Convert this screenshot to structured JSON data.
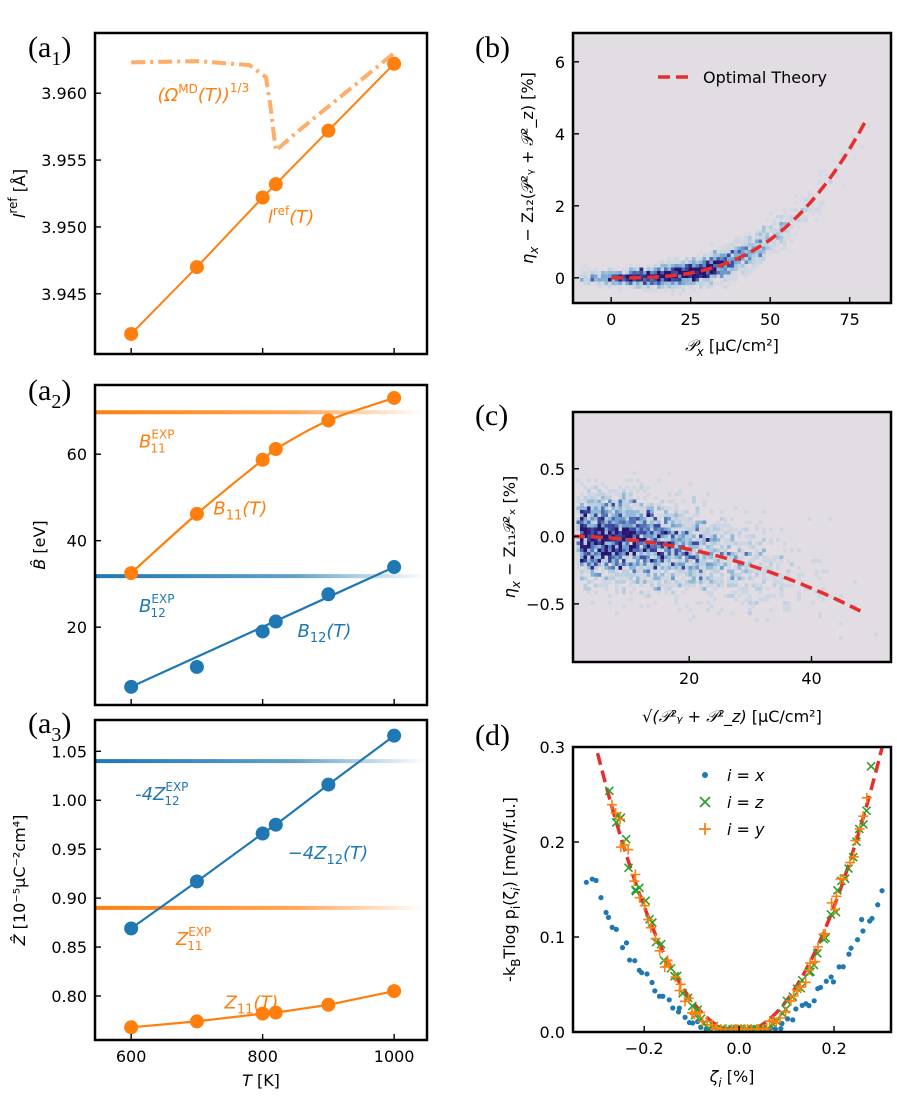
{
  "figure": {
    "colors": {
      "orange": "#ff7f0e",
      "blue": "#1f77b4",
      "red": "#e62e2e",
      "green": "#2ca02c",
      "panel_bg": "#e2dce3"
    },
    "panels": {
      "a1": {
        "tag": "(a",
        "tag_sub": "1",
        "tag_close": ")"
      },
      "a2": {
        "tag": "(a",
        "tag_sub": "2",
        "tag_close": ")"
      },
      "a3": {
        "tag": "(a",
        "tag_sub": "3",
        "tag_close": ")"
      },
      "b": {
        "tag": "(b)"
      },
      "c": {
        "tag": "(c)"
      },
      "d": {
        "tag": "(d)"
      }
    }
  },
  "chart_data": [
    {
      "id": "a1",
      "type": "line",
      "xlim": [
        545,
        1050
      ],
      "ylim": [
        3.9405,
        3.9645
      ],
      "xticks": [
        600,
        800,
        1000
      ],
      "xticklabels": [
        "",
        "",
        ""
      ],
      "yticks": [
        3.945,
        3.95,
        3.955,
        3.96
      ],
      "yticklabels": [
        "3.945",
        "3.950",
        "3.955",
        "3.960"
      ],
      "ylabel": "l",
      "ylabel_sup": "ref",
      "ylabel_unit": " [Å]",
      "series": [
        {
          "name": "lref",
          "color": "#ff7f0e",
          "style": "solid-markers",
          "x": [
            600,
            700,
            800,
            820,
            900,
            1000
          ],
          "y": [
            3.942,
            3.947,
            3.9522,
            3.9532,
            3.9572,
            3.9622
          ]
        },
        {
          "name": "omega_md",
          "color": "#ff7f0e",
          "style": "dashdot",
          "x": [
            600,
            700,
            780,
            805,
            812,
            820,
            850,
            900,
            1000
          ],
          "y": [
            3.9623,
            3.9624,
            3.9621,
            3.9612,
            3.959,
            3.9557,
            3.957,
            3.959,
            3.963
          ]
        }
      ],
      "annotations": [
        {
          "text": "(Ω",
          "sup": "MD",
          "after": "(T))",
          "sup2": "1/3",
          "x": 640,
          "y": 3.9594
        },
        {
          "text": "l",
          "sup": "ref",
          "after": "(T)",
          "x": 808,
          "y": 3.9503
        }
      ]
    },
    {
      "id": "a2",
      "type": "line",
      "xlim": [
        545,
        1050
      ],
      "ylim": [
        2,
        76
      ],
      "xticks": [
        600,
        800,
        1000
      ],
      "xticklabels": [
        "",
        "",
        ""
      ],
      "yticks": [
        20,
        40,
        60
      ],
      "yticklabels": [
        "20",
        "40",
        "60"
      ],
      "ylabel": "B̂",
      "ylabel_unit": " [eV]",
      "series": [
        {
          "name": "B11",
          "color": "#ff7f0e",
          "style": "smooth-markers",
          "x": [
            600,
            700,
            800,
            820,
            900,
            1000
          ],
          "y": [
            32.5,
            46.2,
            58.7,
            61.2,
            67.8,
            73
          ]
        },
        {
          "name": "B12",
          "color": "#1f77b4",
          "style": "line-markers",
          "x": [
            600,
            700,
            800,
            820,
            900,
            1000
          ],
          "y": [
            6.2,
            10.8,
            19.0,
            21.3,
            27.6,
            33.9
          ]
        }
      ],
      "hlines": [
        {
          "name": "B11EXP",
          "color": "#ff7f0e",
          "y": 69.7
        },
        {
          "name": "B12EXP",
          "color": "#1f77b4",
          "y": 31.8
        }
      ],
      "annotations": [
        {
          "text": "B",
          "sub": "11",
          "sup": "EXP",
          "x": 612,
          "y": 61.6,
          "color": "#ff7f0e"
        },
        {
          "text": "B",
          "sub": "11",
          "after": "(T)",
          "x": 725,
          "y": 46,
          "color": "#ff7f0e"
        },
        {
          "text": "B",
          "sub": "12",
          "sup": "EXP",
          "x": 612,
          "y": 23.5,
          "color": "#1f77b4"
        },
        {
          "text": "B",
          "sub": "12",
          "after": "(T)",
          "x": 853,
          "y": 17.7,
          "color": "#1f77b4"
        }
      ]
    },
    {
      "id": "a3",
      "type": "line",
      "xlim": [
        545,
        1050
      ],
      "ylim": [
        0.755,
        1.082
      ],
      "xticks": [
        600,
        800,
        1000
      ],
      "xticklabels": [
        "600",
        "800",
        "1000"
      ],
      "yticks": [
        0.8,
        0.85,
        0.9,
        0.95,
        1.0,
        1.05
      ],
      "yticklabels": [
        "0.80",
        "0.85",
        "0.90",
        "0.95",
        "1.00",
        "1.05"
      ],
      "xlabel": "T",
      "xlabel_unit": " [K]",
      "ylabel": "Ẑ",
      "ylabel_unit": " [10⁻⁵μC⁻²cm⁴]",
      "series": [
        {
          "name": "4Z12",
          "color": "#1f77b4",
          "style": "line-markers",
          "x": [
            600,
            700,
            800,
            820,
            900,
            1000
          ],
          "y": [
            0.869,
            0.917,
            0.966,
            0.975,
            1.016,
            1.066
          ]
        },
        {
          "name": "Z11",
          "color": "#ff7f0e",
          "style": "line-markers",
          "x": [
            600,
            700,
            800,
            820,
            900,
            1000
          ],
          "y": [
            0.768,
            0.774,
            0.782,
            0.783,
            0.791,
            0.805
          ]
        }
      ],
      "hlines": [
        {
          "name": "4Z12EXP",
          "color": "#1f77b4",
          "y": 1.04
        },
        {
          "name": "Z11EXP",
          "color": "#ff7f0e",
          "y": 0.89
        }
      ],
      "annotations": [
        {
          "text": "-4Z",
          "sub": "12",
          "sup": "EXP",
          "x": 606,
          "y": 1.0,
          "color": "#1f77b4"
        },
        {
          "text": "−4Z",
          "sub": "12",
          "after": "(T)",
          "x": 838,
          "y": 0.94,
          "color": "#1f77b4"
        },
        {
          "text": "Z",
          "sub": "11",
          "sup": "EXP",
          "x": 668,
          "y": 0.852,
          "color": "#ff7f0e"
        },
        {
          "text": "Z",
          "sub": "11",
          "after": "(T)",
          "x": 742,
          "y": 0.787,
          "color": "#ff7f0e"
        }
      ]
    },
    {
      "id": "b",
      "type": "heatmap",
      "xlim": [
        -12,
        88
      ],
      "ylim": [
        -0.7,
        6.8
      ],
      "xticks": [
        0,
        25,
        50,
        75
      ],
      "xticklabels": [
        "0",
        "25",
        "50",
        "75"
      ],
      "yticks": [
        0,
        2,
        4,
        6
      ],
      "yticklabels": [
        "0",
        "2",
        "4",
        "6"
      ],
      "xlabel": "𝒫",
      "xlabel_sub": "x",
      "xlabel_unit": " [μC/cm²]",
      "ylabel": "η",
      "ylabel_sub": "x",
      "ylabel_rest": " − Z₁₂(𝒫²ᵧ + 𝒫²_z) [%]",
      "density_curve": {
        "a": 8.5e-06,
        "p": 3,
        "xmin": -10,
        "xmax": 86,
        "spread": 0.25
      },
      "fit": {
        "label": "Optimal Theory",
        "color": "#e62e2e",
        "a": 8.5e-06,
        "p": 3,
        "xmin": 0,
        "xmax": 80
      },
      "legend": {
        "loc": "upper right",
        "entries": [
          "Optimal Theory"
        ]
      }
    },
    {
      "id": "c",
      "type": "heatmap",
      "xlim": [
        1,
        53
      ],
      "ylim": [
        -0.93,
        0.92
      ],
      "xticks": [
        20,
        40
      ],
      "xticklabels": [
        "20",
        "40"
      ],
      "yticks": [
        -0.5,
        0,
        0.5
      ],
      "yticklabels": [
        "−0.5",
        "0.0",
        "0.5"
      ],
      "xlabel": "√(𝒫²ᵧ + 𝒫²_z)",
      "xlabel_unit": " [μC/cm²]",
      "ylabel": "η",
      "ylabel_sub": "x",
      "ylabel_rest": " − Z₁₁𝒫²ₓ [%]",
      "density_curve": {
        "slope": -0.00024,
        "p": 2,
        "xmin": 1,
        "xmax": 52,
        "spread": 0.16
      },
      "fit": {
        "color": "#e62e2e",
        "slope": -0.00024,
        "p": 2,
        "xmin": 1,
        "xmax": 48
      }
    },
    {
      "id": "d",
      "type": "scatter",
      "xlim": [
        -0.35,
        0.32
      ],
      "ylim": [
        0,
        0.3
      ],
      "xticks": [
        -0.2,
        0,
        0.2
      ],
      "xticklabels": [
        "−0.2",
        "0.0",
        "0.2"
      ],
      "yticks": [
        0,
        0.1,
        0.2,
        0.3
      ],
      "yticklabels": [
        "0.0",
        "0.1",
        "0.2",
        "0.3"
      ],
      "xlabel": "ζ",
      "xlabel_sub": "i",
      "xlabel_unit": " [%]",
      "ylabel": "-k",
      "ylabel_sub": "B",
      "ylabel_rest": "Tlog p",
      "ylabel_sub2": "i",
      "ylabel_tail": "(ζ",
      "ylabel_tail_sub": "i",
      "ylabel_end": ") [meV/f.u.]",
      "theory": {
        "color": "#e62e2e",
        "coef": 3.3
      },
      "series": [
        {
          "name": "i = x",
          "label_main": "i",
          "label_rest": " = x",
          "marker": "dot",
          "color": "#1f77b4",
          "coef": 1.72,
          "xmin": -0.32,
          "xmax": 0.3
        },
        {
          "name": "i = z",
          "label_main": "i",
          "label_rest": " = z",
          "marker": "x",
          "color": "#2ca02c",
          "coef": 3.45,
          "xmin": -0.27,
          "xmax": 0.28
        },
        {
          "name": "i = y",
          "label_main": "i",
          "label_rest": " = y",
          "marker": "plus",
          "color": "#ff7f0e",
          "coef": 3.45,
          "xmin": -0.27,
          "xmax": 0.27
        }
      ],
      "legend": {
        "loc": "upper center"
      }
    }
  ]
}
